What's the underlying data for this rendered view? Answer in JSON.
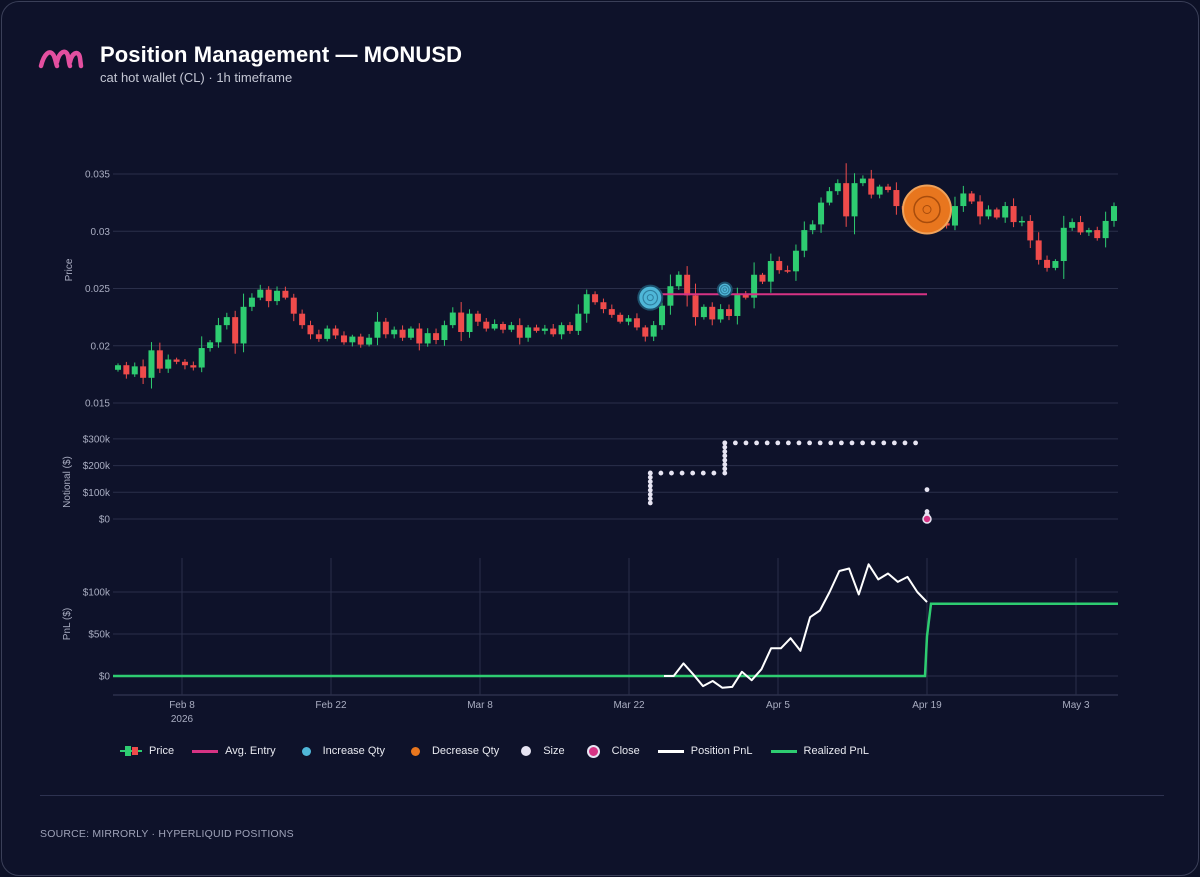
{
  "header": {
    "title": "Position Management — MONUSD",
    "subtitle": "cat hot wallet (CL) · 1h timeframe"
  },
  "footer": {
    "source": "SOURCE: MIRRORLY · HYPERLIQUID POSITIONS"
  },
  "colors": {
    "background": "#0e122a",
    "up": "#2ecc71",
    "down": "#ef4b4b",
    "avg_entry": "#d63384",
    "increase": "#4fb7d8",
    "decrease": "#e8761e",
    "size": "#e6e4f2",
    "close": "#d63384",
    "position_pnl": "#ffffff",
    "realized_pnl": "#2ecc71",
    "grid": "#2a2f4a",
    "axis_text": "#a9adc1"
  },
  "chart_data": [
    {
      "type": "candlestick",
      "ylabel": "Price",
      "ylim": [
        0.015,
        0.037
      ],
      "yticks": [
        "0.015",
        "0.02",
        "0.025",
        "0.03",
        "0.035"
      ],
      "close": [
        0.0183,
        0.0175,
        0.0182,
        0.0172,
        0.0196,
        0.018,
        0.0188,
        0.0186,
        0.0183,
        0.0181,
        0.0198,
        0.0203,
        0.0218,
        0.0225,
        0.0202,
        0.0234,
        0.0242,
        0.0249,
        0.0239,
        0.0248,
        0.0242,
        0.0228,
        0.0218,
        0.021,
        0.0206,
        0.0215,
        0.0209,
        0.0203,
        0.0208,
        0.0201,
        0.0207,
        0.0221,
        0.021,
        0.0214,
        0.0207,
        0.0215,
        0.0202,
        0.0211,
        0.0205,
        0.0218,
        0.0229,
        0.0212,
        0.0228,
        0.0221,
        0.0215,
        0.0219,
        0.0214,
        0.0218,
        0.0207,
        0.0216,
        0.0213,
        0.0215,
        0.021,
        0.0218,
        0.0213,
        0.0228,
        0.0245,
        0.0238,
        0.0232,
        0.0227,
        0.0221,
        0.0224,
        0.0216,
        0.0208,
        0.0218,
        0.0235,
        0.0252,
        0.0262,
        0.0244,
        0.0225,
        0.0234,
        0.0223,
        0.0232,
        0.0226,
        0.0245,
        0.0242,
        0.0262,
        0.0256,
        0.0274,
        0.0266,
        0.0265,
        0.0283,
        0.0301,
        0.0306,
        0.0325,
        0.0335,
        0.0342,
        0.0313,
        0.0342,
        0.0346,
        0.0332,
        0.0339,
        0.0336,
        0.0322,
        0.0319,
        0.0325,
        0.0322,
        0.0309,
        0.0307,
        0.0305,
        0.0322,
        0.0333,
        0.0326,
        0.0313,
        0.0319,
        0.0312,
        0.0322,
        0.0308,
        0.0309,
        0.0292,
        0.0275,
        0.0268,
        0.0274,
        0.0303,
        0.0308,
        0.0299,
        0.0301,
        0.0294,
        0.0309,
        0.0322
      ],
      "events": [
        {
          "kind": "increase",
          "date": "Mar 24",
          "price": 0.0242,
          "notional": 172000
        },
        {
          "kind": "increase",
          "date": "Mar 31",
          "price": 0.0249,
          "notional": 285000
        },
        {
          "kind": "decrease",
          "date": "Apr 19",
          "price": 0.0319,
          "notional": 110000
        },
        {
          "kind": "close",
          "date": "Apr 19",
          "price": 0.0319,
          "notional": 0
        }
      ],
      "avg_entry": {
        "price": 0.0245,
        "from": "Mar 24",
        "to": "Apr 19"
      }
    },
    {
      "type": "scatter",
      "name": "Size",
      "ylabel": "Notional ($)",
      "yticks": [
        "$0",
        "$100k",
        "$200k",
        "$300k"
      ],
      "ylim": [
        0,
        300000
      ],
      "segments": [
        {
          "from": "Mar 24",
          "to": "Mar 31",
          "value": 172000
        },
        {
          "from": "Mar 31",
          "to": "Apr 19",
          "value": 285000
        }
      ]
    },
    {
      "type": "line",
      "ylabel": "PnL ($)",
      "yticks": [
        "$0",
        "$50k",
        "$100k"
      ],
      "ylim": [
        -20000,
        140000
      ],
      "xticks": [
        "Feb 8",
        "Feb 22",
        "Mar 8",
        "Mar 22",
        "Apr 5",
        "Apr 19",
        "May 3"
      ],
      "xtick_year": "2026",
      "position_pnl": [
        0,
        0,
        15000,
        2000,
        -12000,
        -6000,
        -14000,
        -13000,
        5000,
        -5000,
        8000,
        33000,
        33000,
        45000,
        30000,
        70000,
        78000,
        100000,
        125000,
        128000,
        97000,
        133000,
        115000,
        122000,
        112000,
        118000,
        100000,
        88000
      ],
      "realized_pnl": {
        "before": 0,
        "after": 86000,
        "date": "Apr 19"
      }
    }
  ],
  "legend": {
    "price": "Price",
    "avg_entry": "Avg. Entry",
    "increase": "Increase Qty",
    "decrease": "Decrease Qty",
    "size": "Size",
    "close": "Close",
    "position_pnl": "Position PnL",
    "realized_pnl": "Realized PnL"
  }
}
